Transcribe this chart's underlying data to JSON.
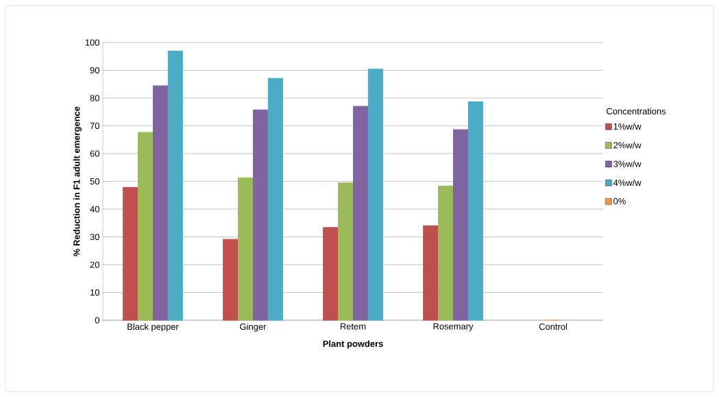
{
  "chart_data": {
    "type": "bar",
    "xlabel": "Plant powders",
    "ylabel": "% Reduction in F1 adult emergence",
    "legend_title": "Concentrations",
    "categories": [
      "Black pepper",
      "Ginger",
      "Retem",
      "Rosemary",
      "Control"
    ],
    "series": [
      {
        "name": "1%w/w",
        "color": "#c0504d",
        "values": [
          47.8,
          29.1,
          33.4,
          34,
          null
        ]
      },
      {
        "name": "2%w/w",
        "color": "#9bbb59",
        "values": [
          67.6,
          51.3,
          49.4,
          48.3,
          null
        ]
      },
      {
        "name": "3%w/w",
        "color": "#8064a2",
        "values": [
          84.4,
          75.7,
          77,
          68.6,
          null
        ]
      },
      {
        "name": "4%w/w",
        "color": "#4bacc6",
        "values": [
          96.9,
          87.1,
          90.4,
          78.6,
          null
        ]
      },
      {
        "name": "0%",
        "color": "#f79646",
        "values": [
          null,
          null,
          null,
          null,
          0
        ]
      }
    ],
    "ylim": [
      0,
      100
    ],
    "yticks": [
      0,
      10,
      20,
      30,
      40,
      50,
      60,
      70,
      80,
      90,
      100
    ],
    "grid": "y",
    "legend": "right"
  }
}
